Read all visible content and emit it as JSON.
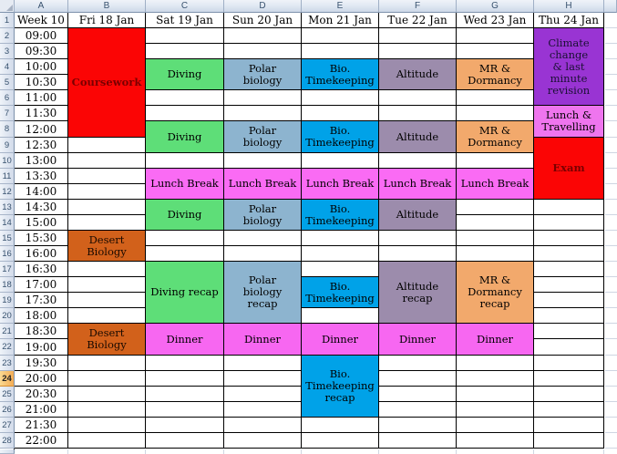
{
  "sheet": {
    "week_label": "Week 10",
    "column_headers": [
      "A",
      "B",
      "C",
      "D",
      "E",
      "F",
      "G",
      "H"
    ],
    "row_headers": [
      1,
      2,
      3,
      4,
      5,
      6,
      7,
      8,
      9,
      10,
      11,
      12,
      13,
      14,
      15,
      16,
      17,
      18,
      19,
      20,
      21,
      22,
      23,
      24,
      25,
      26,
      27,
      28
    ],
    "selected_row": 24,
    "day_headers": [
      {
        "col": "B",
        "label": "Fri 18 Jan"
      },
      {
        "col": "C",
        "label": "Sat 19 Jan"
      },
      {
        "col": "D",
        "label": "Sun 20 Jan"
      },
      {
        "col": "E",
        "label": "Mon 21 Jan"
      },
      {
        "col": "F",
        "label": "Tue 22 Jan"
      },
      {
        "col": "G",
        "label": "Wed 23 Jan"
      },
      {
        "col": "H",
        "label": "Thu 24 Jan"
      }
    ],
    "times": [
      "09:00",
      "09:30",
      "10:00",
      "10:30",
      "11:00",
      "11:30",
      "12:00",
      "12:30",
      "13:00",
      "13:30",
      "14:00",
      "14:30",
      "15:00",
      "15:30",
      "16:00",
      "16:30",
      "17:00",
      "17:30",
      "18:00",
      "18:30",
      "19:00",
      "19:30",
      "20:00",
      "20:30",
      "21:00",
      "21:30",
      "22:00"
    ]
  },
  "event_styles": {
    "exam": {
      "bg": "#FB0505",
      "text": "#7A0000",
      "bold": true
    },
    "diving": {
      "bg": "#5EDE78",
      "text": "#000000",
      "bold": false
    },
    "polar": {
      "bg": "#8DB4CF",
      "text": "#000000",
      "bold": false
    },
    "bio": {
      "bg": "#00A2E8",
      "text": "#000000",
      "bold": false
    },
    "altitude": {
      "bg": "#9C8CAC",
      "text": "#000000",
      "bold": false
    },
    "dormancy": {
      "bg": "#F2A96C",
      "text": "#000000",
      "bold": false
    },
    "climate": {
      "bg": "#9934D3",
      "text": "#1A1033",
      "bold": false
    },
    "lunch_travel": {
      "bg": "#EF75EE",
      "text": "#000000",
      "bold": false
    },
    "break": {
      "bg": "#FA6BF4",
      "text": "#000000",
      "bold": false
    },
    "dinner": {
      "bg": "#F767F1",
      "text": "#000000",
      "bold": false
    },
    "desert": {
      "bg": "#D2611B",
      "text": "#1A0A00",
      "bold": false
    }
  },
  "events": [
    {
      "col": "B",
      "start": 2,
      "end": 8,
      "style": "exam",
      "lines": [
        "Coursework"
      ]
    },
    {
      "col": "B",
      "start": 15,
      "end": 16,
      "style": "desert",
      "lines": [
        "Desert",
        "Biology"
      ]
    },
    {
      "col": "B",
      "start": 21,
      "end": 22,
      "style": "desert",
      "lines": [
        "Desert",
        "Biology"
      ]
    },
    {
      "col": "C",
      "start": 4,
      "end": 5,
      "style": "diving",
      "lines": [
        "Diving"
      ]
    },
    {
      "col": "C",
      "start": 8,
      "end": 9,
      "style": "diving",
      "lines": [
        "Diving"
      ]
    },
    {
      "col": "C",
      "start": 11,
      "end": 12,
      "style": "break",
      "lines": [
        "Lunch Break"
      ]
    },
    {
      "col": "C",
      "start": 13,
      "end": 14,
      "style": "diving",
      "lines": [
        "Diving"
      ]
    },
    {
      "col": "C",
      "start": 17,
      "end": 20,
      "style": "diving",
      "lines": [
        "Diving recap"
      ]
    },
    {
      "col": "C",
      "start": 21,
      "end": 22,
      "style": "dinner",
      "lines": [
        "Dinner"
      ]
    },
    {
      "col": "D",
      "start": 4,
      "end": 5,
      "style": "polar",
      "lines": [
        "Polar",
        "biology"
      ]
    },
    {
      "col": "D",
      "start": 8,
      "end": 9,
      "style": "polar",
      "lines": [
        "Polar",
        "biology"
      ]
    },
    {
      "col": "D",
      "start": 11,
      "end": 12,
      "style": "break",
      "lines": [
        "Lunch Break"
      ]
    },
    {
      "col": "D",
      "start": 13,
      "end": 14,
      "style": "polar",
      "lines": [
        "Polar",
        "biology"
      ]
    },
    {
      "col": "D",
      "start": 17,
      "end": 20,
      "style": "polar",
      "lines": [
        "Polar",
        "biology",
        "recap"
      ]
    },
    {
      "col": "D",
      "start": 21,
      "end": 22,
      "style": "dinner",
      "lines": [
        "Dinner"
      ]
    },
    {
      "col": "E",
      "start": 4,
      "end": 5,
      "style": "bio",
      "lines": [
        "Bio.",
        "Timekeeping"
      ]
    },
    {
      "col": "E",
      "start": 8,
      "end": 9,
      "style": "bio",
      "lines": [
        "Bio.",
        "Timekeeping"
      ]
    },
    {
      "col": "E",
      "start": 11,
      "end": 12,
      "style": "break",
      "lines": [
        "Lunch Break"
      ]
    },
    {
      "col": "E",
      "start": 13,
      "end": 14,
      "style": "bio",
      "lines": [
        "Bio.",
        "Timekeeping"
      ]
    },
    {
      "col": "E",
      "start": 18,
      "end": 19,
      "style": "bio",
      "lines": [
        "Bio.",
        "Timekeeping"
      ]
    },
    {
      "col": "E",
      "start": 21,
      "end": 22,
      "style": "dinner",
      "lines": [
        "Dinner"
      ]
    },
    {
      "col": "E",
      "start": 23,
      "end": 26,
      "style": "bio",
      "lines": [
        "Bio.",
        "Timekeeping",
        "recap"
      ]
    },
    {
      "col": "F",
      "start": 4,
      "end": 5,
      "style": "altitude",
      "lines": [
        "Altitude"
      ]
    },
    {
      "col": "F",
      "start": 8,
      "end": 9,
      "style": "altitude",
      "lines": [
        "Altitude"
      ]
    },
    {
      "col": "F",
      "start": 11,
      "end": 12,
      "style": "break",
      "lines": [
        "Lunch Break"
      ]
    },
    {
      "col": "F",
      "start": 13,
      "end": 14,
      "style": "altitude",
      "lines": [
        "Altitude"
      ]
    },
    {
      "col": "F",
      "start": 17,
      "end": 20,
      "style": "altitude",
      "lines": [
        "Altitude",
        "recap"
      ]
    },
    {
      "col": "F",
      "start": 21,
      "end": 22,
      "style": "dinner",
      "lines": [
        "Dinner"
      ]
    },
    {
      "col": "G",
      "start": 4,
      "end": 5,
      "style": "dormancy",
      "lines": [
        "MR &",
        "Dormancy"
      ]
    },
    {
      "col": "G",
      "start": 8,
      "end": 9,
      "style": "dormancy",
      "lines": [
        "MR &",
        "Dormancy"
      ]
    },
    {
      "col": "G",
      "start": 11,
      "end": 12,
      "style": "break",
      "lines": [
        "Lunch Break"
      ]
    },
    {
      "col": "G",
      "start": 17,
      "end": 20,
      "style": "dormancy",
      "lines": [
        "MR &",
        "Dormancy",
        "recap"
      ]
    },
    {
      "col": "G",
      "start": 21,
      "end": 22,
      "style": "dinner",
      "lines": [
        "Dinner"
      ]
    },
    {
      "col": "H",
      "start": 2,
      "end": 6,
      "style": "climate",
      "lines": [
        "Climate",
        "change",
        "& last minute",
        "revision"
      ]
    },
    {
      "col": "H",
      "start": 7,
      "end": 8,
      "style": "lunch_travel",
      "lines": [
        "Lunch &",
        "Travelling"
      ]
    },
    {
      "col": "H",
      "start": 9,
      "end": 12,
      "style": "exam",
      "lines": [
        "Exam"
      ]
    }
  ],
  "ui_colors": {
    "gridline": "#CFD6E2",
    "table_border": "#000000",
    "header_text": "#39536F",
    "selected_row_header": "#F3AC55"
  }
}
